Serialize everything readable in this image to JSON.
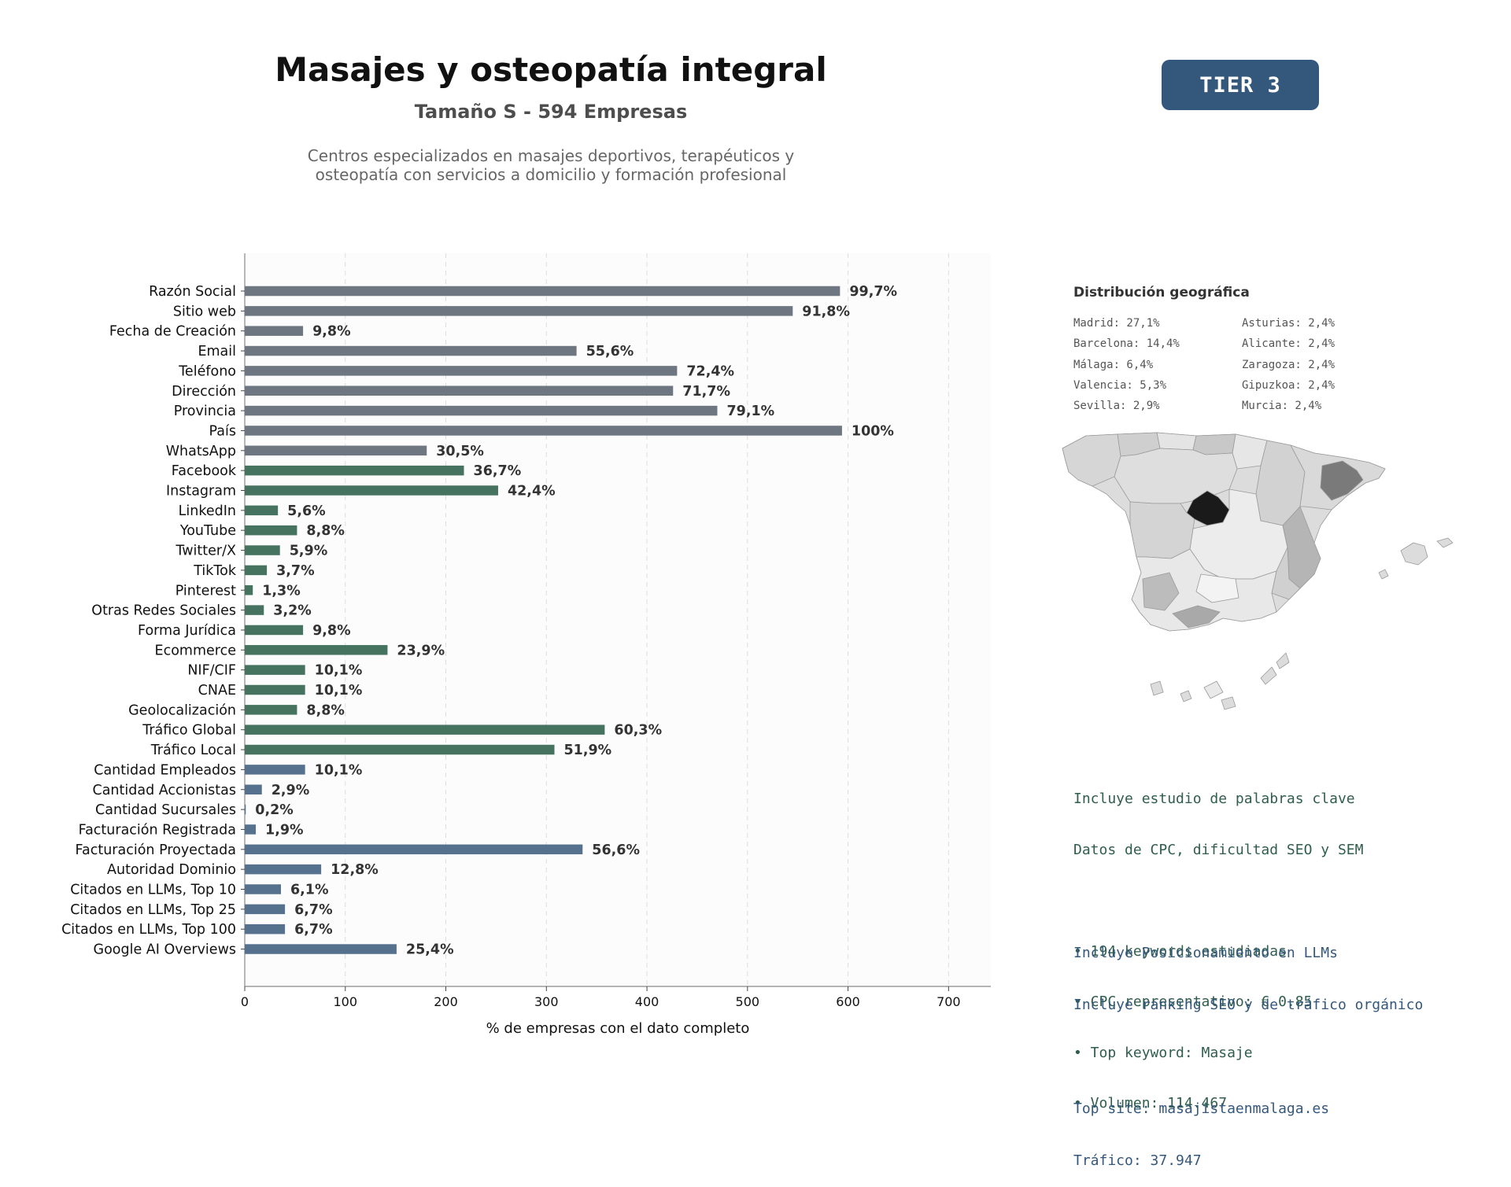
{
  "header": {
    "title": "Masajes y osteopatía integral",
    "subtitle": "Tamaño S - 594 Empresas",
    "description_lines": [
      "Centros especializados en masajes deportivos, terapéuticos y",
      "osteopatía con servicios a domicilio y formación profesional"
    ],
    "tier_label": "TIER 3"
  },
  "chart_data": {
    "type": "bar",
    "orientation": "horizontal",
    "xlabel": "% de empresas con el dato completo",
    "xlim": [
      0,
      742
    ],
    "xticks": [
      0,
      100,
      200,
      300,
      400,
      500,
      600,
      700
    ],
    "grid": "vertical dashed",
    "categories": [
      "Razón Social",
      "Sitio web",
      "Fecha de Creación",
      "Email",
      "Teléfono",
      "Dirección",
      "Provincia",
      "País",
      "WhatsApp",
      "Facebook",
      "Instagram",
      "LinkedIn",
      "YouTube",
      "Twitter/X",
      "TikTok",
      "Pinterest",
      "Otras Redes Sociales",
      "Forma Jurídica",
      "Ecommerce",
      "NIF/CIF",
      "CNAE",
      "Geolocalización",
      "Tráfico Global",
      "Tráfico Local",
      "Cantidad Empleados",
      "Cantidad Accionistas",
      "Cantidad Sucursales",
      "Facturación Registrada",
      "Facturación Proyectada",
      "Autoridad Dominio",
      "Citados en LLMs, Top 10",
      "Citados en LLMs, Top 25",
      "Citados en LLMs, Top 100",
      "Google AI Overviews"
    ],
    "values": [
      592,
      545,
      58,
      330,
      430,
      426,
      470,
      594,
      181,
      218,
      252,
      33,
      52,
      35,
      22,
      8,
      19,
      58,
      142,
      60,
      60,
      52,
      358,
      308,
      60,
      17,
      1,
      11,
      336,
      76,
      36,
      40,
      40,
      151
    ],
    "labels": [
      "99,7%",
      "91,8%",
      "9,8%",
      "55,6%",
      "72,4%",
      "71,7%",
      "79,1%",
      "100%",
      "30,5%",
      "36,7%",
      "42,4%",
      "5,6%",
      "8,8%",
      "5,9%",
      "3,7%",
      "1,3%",
      "3,2%",
      "9,8%",
      "23,9%",
      "10,1%",
      "10,1%",
      "8,8%",
      "60,3%",
      "51,9%",
      "10,1%",
      "2,9%",
      "0,2%",
      "1,9%",
      "56,6%",
      "12,8%",
      "6,1%",
      "6,7%",
      "6,7%",
      "25,4%"
    ],
    "group_colors": [
      "#6e7781",
      "#6e7781",
      "#6e7781",
      "#6e7781",
      "#6e7781",
      "#6e7781",
      "#6e7781",
      "#6e7781",
      "#6e7781",
      "#46735f",
      "#46735f",
      "#46735f",
      "#46735f",
      "#46735f",
      "#46735f",
      "#46735f",
      "#46735f",
      "#46735f",
      "#46735f",
      "#46735f",
      "#46735f",
      "#46735f",
      "#46735f",
      "#46735f",
      "#56718d",
      "#56718d",
      "#56718d",
      "#56718d",
      "#56718d",
      "#56718d",
      "#56718d",
      "#56718d",
      "#56718d",
      "#56718d"
    ]
  },
  "geo": {
    "title": "Distribución geográfica",
    "col1": [
      "Madrid: 27,1%",
      "Barcelona: 14,4%",
      "Málaga: 6,4%",
      "Valencia: 5,3%",
      "Sevilla: 2,9%"
    ],
    "col2": [
      "Asturias: 2,4%",
      "Alicante: 2,4%",
      "Zaragoza: 2,4%",
      "Gipuzkoa: 2,4%",
      "Murcia: 2,4%"
    ]
  },
  "seo": {
    "lines": [
      "Incluye estudio de palabras clave",
      "Datos de CPC, dificultad SEO y SEM",
      "",
      "• 194 keywords estudiadas",
      "• CPC representativo: € 0.85",
      "• Top keyword: Masaje",
      "• Volumen: 114.467"
    ]
  },
  "llm": {
    "lines": [
      "Incluye Posicionamiento en LLMs",
      "Incluye ranking SEO y de tráfico orgánico",
      "",
      "Top site: masajistaenmalaga.es",
      "Tráfico: 37.947"
    ]
  }
}
